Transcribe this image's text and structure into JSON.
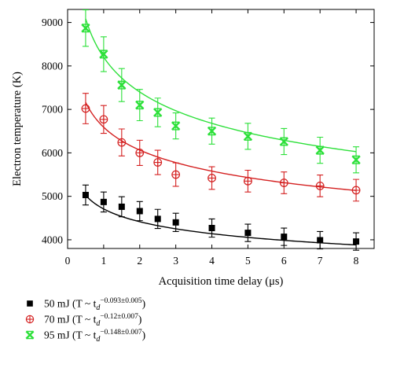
{
  "chart_data": {
    "type": "scatter",
    "xlabel": "Acquisition time delay (μs)",
    "ylabel": "Electron temperature (K)",
    "xlim": [
      0,
      8.5
    ],
    "ylim": [
      3800,
      9300
    ],
    "xticks": [
      "0",
      "1",
      "2",
      "3",
      "4",
      "5",
      "6",
      "7",
      "8"
    ],
    "yticks": [
      "4000",
      "5000",
      "6000",
      "7000",
      "8000",
      "9000"
    ],
    "grid": false,
    "legend_position": "below",
    "series": [
      {
        "name": "50 mJ",
        "legend_fit": "(T ~ t",
        "legend_sub": "d",
        "legend_exp": "−0.093±0.005",
        "legend_close": ")",
        "marker": "square",
        "color": "#000000",
        "x": [
          0.5,
          1,
          1.5,
          2,
          2.5,
          3,
          4,
          5,
          6,
          7,
          8
        ],
        "y": [
          5030,
          4870,
          4760,
          4660,
          4480,
          4400,
          4270,
          4160,
          4070,
          3990,
          3960
        ],
        "err": [
          230,
          230,
          230,
          220,
          220,
          210,
          210,
          200,
          200,
          200,
          200
        ],
        "fit": {
          "A": 4710,
          "n": 0.093
        }
      },
      {
        "name": "70 mJ",
        "legend_fit": "(T ~ t",
        "legend_sub": "d",
        "legend_exp": "−0.12±0.007",
        "legend_close": ")",
        "marker": "circle-plus",
        "color": "#d42020",
        "x": [
          0.5,
          1,
          1.5,
          2,
          2.5,
          3,
          4,
          5,
          6,
          7,
          8
        ],
        "y": [
          7020,
          6770,
          6240,
          6000,
          5780,
          5500,
          5420,
          5350,
          5310,
          5240,
          5140
        ],
        "err": [
          350,
          320,
          310,
          290,
          280,
          270,
          260,
          250,
          250,
          250,
          250
        ],
        "fit": {
          "A": 6590,
          "n": 0.12
        }
      },
      {
        "name": "95 mJ",
        "legend_fit": "(T ~ t",
        "legend_sub": "d",
        "legend_exp": "−0.148±0.007",
        "legend_close": ")",
        "marker": "x-cross",
        "color": "#2de03a",
        "x": [
          0.5,
          1,
          1.5,
          2,
          2.5,
          3,
          4,
          5,
          6,
          7,
          8
        ],
        "y": [
          8870,
          8270,
          7560,
          7100,
          6930,
          6620,
          6500,
          6380,
          6260,
          6060,
          5840
        ],
        "err": [
          420,
          400,
          380,
          360,
          330,
          300,
          300,
          300,
          300,
          300,
          300
        ],
        "fit": {
          "A": 8200,
          "n": 0.148
        }
      }
    ]
  }
}
